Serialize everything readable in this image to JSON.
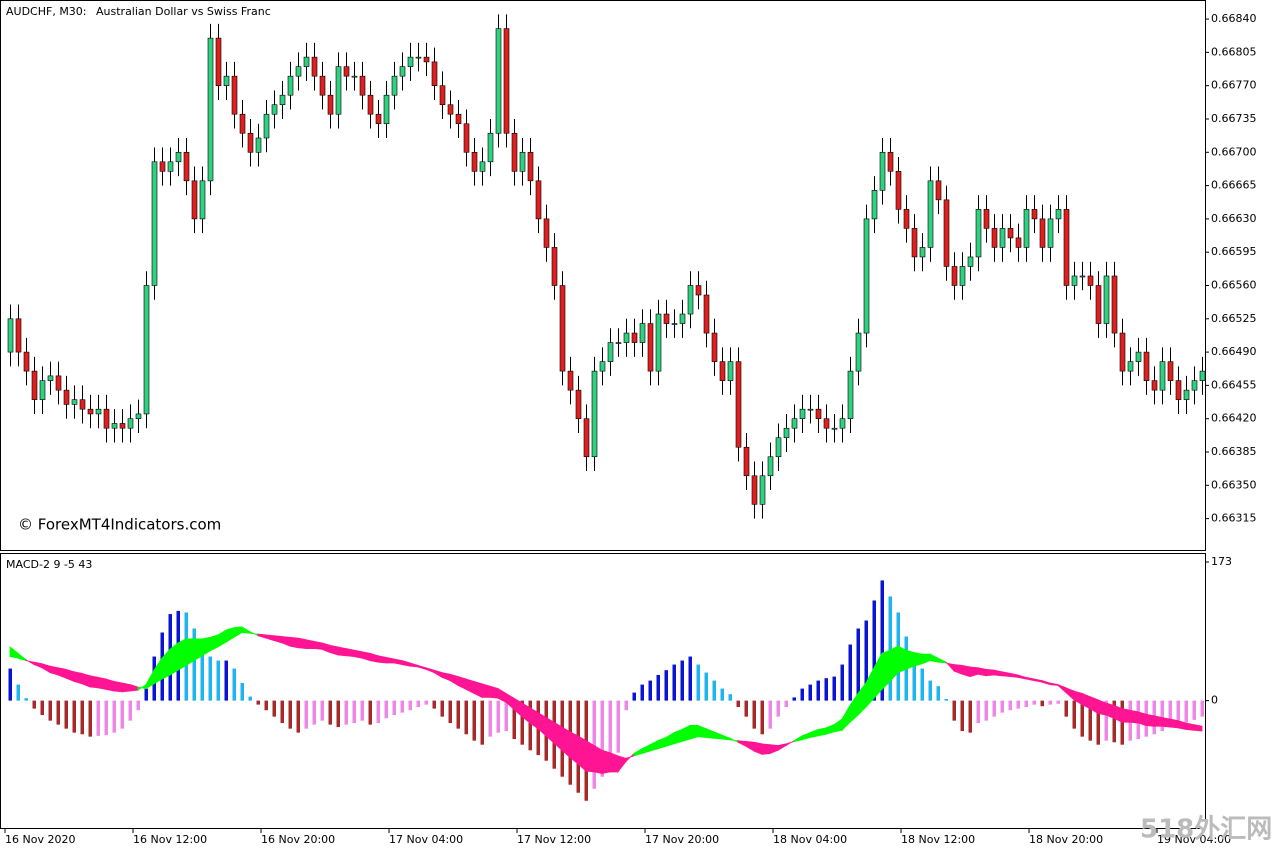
{
  "watermark": "518外汇网",
  "chart_data": [
    {
      "type": "candlestick",
      "title": "AUDCHF, M30:",
      "subtitle": "Australian Dollar vs Swiss Franc",
      "annotation": "© ForexMT4Indicators.com",
      "up_color": "#2fd07f",
      "down_color": "#e0201f",
      "wick_color": "#000000",
      "categories": [
        "16 Nov 2020",
        null,
        null,
        null,
        null,
        null,
        null,
        null,
        null,
        null,
        null,
        null,
        null,
        null,
        null,
        null,
        "16 Nov 12:00",
        null,
        null,
        null,
        null,
        null,
        null,
        null,
        null,
        null,
        null,
        null,
        null,
        null,
        null,
        null,
        "16 Nov 20:00",
        null,
        null,
        null,
        null,
        null,
        null,
        null,
        null,
        null,
        null,
        null,
        null,
        null,
        null,
        null,
        "17 Nov 04:00",
        null,
        null,
        null,
        null,
        null,
        null,
        null,
        null,
        null,
        null,
        null,
        null,
        null,
        null,
        null,
        "17 Nov 12:00",
        null,
        null,
        null,
        null,
        null,
        null,
        null,
        null,
        null,
        null,
        null,
        null,
        null,
        null,
        null,
        "17 Nov 20:00",
        null,
        null,
        null,
        null,
        null,
        null,
        null,
        null,
        null,
        null,
        null,
        null,
        null,
        null,
        null,
        "18 Nov 04:00",
        null,
        null,
        null,
        null,
        null,
        null,
        null,
        null,
        null,
        null,
        null,
        null,
        null,
        null,
        null,
        "18 Nov 12:00",
        null,
        null,
        null,
        null,
        null,
        null,
        null,
        null,
        null,
        null,
        null,
        null,
        null,
        null,
        null,
        "18 Nov 20:00",
        null,
        null,
        null,
        null,
        null,
        null,
        null,
        null,
        null,
        null,
        null,
        null,
        null,
        null,
        null,
        "19 Nov 04:00",
        null,
        null,
        null,
        null,
        null
      ],
      "open": [
        0.6649,
        0.66525,
        0.6649,
        0.6647,
        0.6644,
        0.6646,
        0.66465,
        0.6645,
        0.66435,
        0.6644,
        0.6643,
        0.66425,
        0.6643,
        0.6641,
        0.66415,
        0.6641,
        0.6642,
        0.66425,
        0.6656,
        0.6669,
        0.6668,
        0.6669,
        0.667,
        0.6667,
        0.6663,
        0.6667,
        0.6682,
        0.6677,
        0.6678,
        0.6674,
        0.6672,
        0.667,
        0.66715,
        0.6674,
        0.6675,
        0.6676,
        0.6678,
        0.6679,
        0.668,
        0.6678,
        0.6676,
        0.6674,
        0.6679,
        0.6678,
        0.6678,
        0.6676,
        0.6674,
        0.6673,
        0.6676,
        0.6678,
        0.6679,
        0.668,
        0.668,
        0.66795,
        0.6677,
        0.6675,
        0.6674,
        0.6673,
        0.667,
        0.6668,
        0.6669,
        0.6672,
        0.6683,
        0.6672,
        0.6668,
        0.667,
        0.6667,
        0.6663,
        0.666,
        0.6656,
        0.6647,
        0.6645,
        0.6642,
        0.6638,
        0.6647,
        0.6648,
        0.665,
        0.665,
        0.6651,
        0.665,
        0.6652,
        0.6647,
        0.6653,
        0.6652,
        0.6652,
        0.6653,
        0.6656,
        0.6655,
        0.6651,
        0.6648,
        0.6646,
        0.6648,
        0.6639,
        0.6636,
        0.6633,
        0.6636,
        0.6638,
        0.664,
        0.6641,
        0.6642,
        0.6643,
        0.6643,
        0.6642,
        0.6641,
        0.6641,
        0.6642,
        0.6647,
        0.6651,
        0.6663,
        0.6666,
        0.667,
        0.6668,
        0.6664,
        0.6662,
        0.6659,
        0.666,
        0.6667,
        0.6665,
        0.6658,
        0.6656,
        0.6658,
        0.6659,
        0.6664,
        0.6662,
        0.666,
        0.6662,
        0.6661,
        0.666,
        0.6664,
        0.6663,
        0.666,
        0.6663,
        0.6664,
        0.6656,
        0.6657,
        0.6657,
        0.6656,
        0.6652,
        0.6657,
        0.6651,
        0.6647,
        0.6648,
        0.6649,
        0.6646,
        0.6645,
        0.6648,
        0.6646,
        0.6644,
        0.6645,
        0.6646
      ],
      "high": [
        0.6654,
        0.6654,
        0.66505,
        0.66485,
        0.66475,
        0.6648,
        0.6648,
        0.66465,
        0.66455,
        0.66455,
        0.66445,
        0.66445,
        0.66445,
        0.6643,
        0.6643,
        0.66435,
        0.6644,
        0.66575,
        0.66705,
        0.66705,
        0.66705,
        0.66715,
        0.66715,
        0.66685,
        0.66685,
        0.66835,
        0.66835,
        0.66795,
        0.66795,
        0.66755,
        0.66735,
        0.6673,
        0.66755,
        0.66765,
        0.66775,
        0.66795,
        0.66805,
        0.66815,
        0.66815,
        0.66795,
        0.66775,
        0.66805,
        0.66805,
        0.66795,
        0.66795,
        0.66775,
        0.66755,
        0.66775,
        0.66795,
        0.66805,
        0.66815,
        0.66815,
        0.66815,
        0.6681,
        0.66785,
        0.66765,
        0.66755,
        0.66745,
        0.66715,
        0.66705,
        0.66735,
        0.66845,
        0.66845,
        0.66735,
        0.66715,
        0.66715,
        0.66685,
        0.66645,
        0.66615,
        0.66575,
        0.66485,
        0.66465,
        0.66435,
        0.66485,
        0.66495,
        0.66515,
        0.66515,
        0.66525,
        0.66525,
        0.66535,
        0.66535,
        0.66545,
        0.66545,
        0.66535,
        0.66545,
        0.66575,
        0.66575,
        0.66565,
        0.66525,
        0.66495,
        0.66495,
        0.66495,
        0.66405,
        0.66375,
        0.66375,
        0.66395,
        0.66415,
        0.66425,
        0.66435,
        0.66445,
        0.66445,
        0.66445,
        0.66435,
        0.66425,
        0.66435,
        0.66485,
        0.66525,
        0.66645,
        0.66675,
        0.66715,
        0.66715,
        0.66695,
        0.66655,
        0.66635,
        0.66615,
        0.66685,
        0.66685,
        0.66665,
        0.66595,
        0.66595,
        0.66605,
        0.66655,
        0.66655,
        0.66635,
        0.66635,
        0.66635,
        0.66625,
        0.66655,
        0.66655,
        0.66645,
        0.66645,
        0.66655,
        0.66655,
        0.66585,
        0.66585,
        0.66585,
        0.66575,
        0.66585,
        0.66585,
        0.66525,
        0.66495,
        0.66505,
        0.66505,
        0.66475,
        0.66495,
        0.66495,
        0.66475,
        0.66465,
        0.66475,
        0.66485
      ],
      "low": [
        0.66475,
        0.66475,
        0.66455,
        0.66425,
        0.66425,
        0.66445,
        0.66435,
        0.6642,
        0.6642,
        0.66415,
        0.6641,
        0.6641,
        0.66395,
        0.66395,
        0.66395,
        0.66395,
        0.66405,
        0.6641,
        0.66545,
        0.66665,
        0.66665,
        0.66675,
        0.66655,
        0.66615,
        0.66615,
        0.66655,
        0.66755,
        0.66755,
        0.66725,
        0.66705,
        0.66685,
        0.66685,
        0.667,
        0.66725,
        0.66735,
        0.66745,
        0.66765,
        0.66775,
        0.66765,
        0.66745,
        0.66725,
        0.66725,
        0.66765,
        0.66765,
        0.66745,
        0.66725,
        0.66715,
        0.66715,
        0.66745,
        0.66765,
        0.66775,
        0.66785,
        0.6678,
        0.66755,
        0.66735,
        0.66725,
        0.66715,
        0.66685,
        0.66665,
        0.66665,
        0.66675,
        0.66705,
        0.66705,
        0.66665,
        0.66665,
        0.66655,
        0.66615,
        0.66585,
        0.66545,
        0.66455,
        0.66435,
        0.66405,
        0.66365,
        0.66365,
        0.66455,
        0.66465,
        0.66485,
        0.66485,
        0.66485,
        0.66485,
        0.66455,
        0.66455,
        0.66505,
        0.66505,
        0.66505,
        0.66515,
        0.66535,
        0.66495,
        0.66465,
        0.66445,
        0.66445,
        0.66375,
        0.66345,
        0.66315,
        0.66315,
        0.66345,
        0.66365,
        0.66385,
        0.66395,
        0.66405,
        0.66415,
        0.66405,
        0.66395,
        0.66395,
        0.66395,
        0.66405,
        0.66455,
        0.66495,
        0.66615,
        0.66645,
        0.66665,
        0.66625,
        0.66605,
        0.66575,
        0.66575,
        0.66585,
        0.66635,
        0.66565,
        0.66545,
        0.66545,
        0.66565,
        0.66575,
        0.66605,
        0.66585,
        0.66585,
        0.66595,
        0.66585,
        0.66585,
        0.66615,
        0.66585,
        0.66585,
        0.66615,
        0.66545,
        0.66545,
        0.66555,
        0.66545,
        0.66505,
        0.66505,
        0.66495,
        0.66455,
        0.66455,
        0.66465,
        0.66445,
        0.66435,
        0.66435,
        0.66445,
        0.66425,
        0.66425,
        0.66435,
        0.66445
      ],
      "close": [
        0.66525,
        0.6649,
        0.6647,
        0.6644,
        0.6646,
        0.66465,
        0.6645,
        0.66435,
        0.6644,
        0.6643,
        0.66425,
        0.6643,
        0.6641,
        0.66415,
        0.6641,
        0.6642,
        0.66425,
        0.6656,
        0.6669,
        0.6668,
        0.6669,
        0.667,
        0.6667,
        0.6663,
        0.6667,
        0.6682,
        0.6677,
        0.6678,
        0.6674,
        0.6672,
        0.667,
        0.66715,
        0.6674,
        0.6675,
        0.6676,
        0.6678,
        0.6679,
        0.668,
        0.6678,
        0.6676,
        0.6674,
        0.6679,
        0.6678,
        0.6678,
        0.6676,
        0.6674,
        0.6673,
        0.6676,
        0.6678,
        0.6679,
        0.668,
        0.668,
        0.66795,
        0.6677,
        0.6675,
        0.6674,
        0.6673,
        0.667,
        0.6668,
        0.6669,
        0.6672,
        0.6683,
        0.6672,
        0.6668,
        0.667,
        0.6667,
        0.6663,
        0.666,
        0.6656,
        0.6647,
        0.6645,
        0.6642,
        0.6638,
        0.6647,
        0.6648,
        0.665,
        0.665,
        0.6651,
        0.665,
        0.6652,
        0.6647,
        0.6653,
        0.6652,
        0.6652,
        0.6653,
        0.6656,
        0.6655,
        0.6651,
        0.6648,
        0.6646,
        0.6648,
        0.6639,
        0.6636,
        0.6633,
        0.6636,
        0.6638,
        0.664,
        0.6641,
        0.6642,
        0.6643,
        0.6643,
        0.6642,
        0.6641,
        0.6641,
        0.6642,
        0.6647,
        0.6651,
        0.6663,
        0.6666,
        0.667,
        0.6668,
        0.6664,
        0.6662,
        0.6659,
        0.666,
        0.6667,
        0.6665,
        0.6658,
        0.6656,
        0.6658,
        0.6659,
        0.6664,
        0.6662,
        0.666,
        0.6662,
        0.6661,
        0.666,
        0.6664,
        0.6663,
        0.666,
        0.6663,
        0.6664,
        0.6656,
        0.6657,
        0.6657,
        0.6656,
        0.6652,
        0.6657,
        0.6651,
        0.6647,
        0.6648,
        0.6649,
        0.6646,
        0.6645,
        0.6648,
        0.6646,
        0.6644,
        0.6645,
        0.6646,
        0.6647
      ],
      "ylim": [
        0.66282,
        0.66859
      ],
      "yticks": [
        {
          "value": 0.6684,
          "label": "0.66840"
        },
        {
          "value": 0.66805,
          "label": "0.66805"
        },
        {
          "value": 0.6677,
          "label": "0.66770"
        },
        {
          "value": 0.66735,
          "label": "0.66735"
        },
        {
          "value": 0.667,
          "label": "0.66700"
        },
        {
          "value": 0.66665,
          "label": "0.66665"
        },
        {
          "value": 0.6663,
          "label": "0.66630"
        },
        {
          "value": 0.66595,
          "label": "0.66595"
        },
        {
          "value": 0.6656,
          "label": "0.66560"
        },
        {
          "value": 0.66525,
          "label": "0.66525"
        },
        {
          "value": 0.6649,
          "label": "0.66490"
        },
        {
          "value": 0.66455,
          "label": "0.66455"
        },
        {
          "value": 0.6642,
          "label": "0.66420"
        },
        {
          "value": 0.66385,
          "label": "0.66385"
        },
        {
          "value": 0.6635,
          "label": "0.66350"
        },
        {
          "value": 0.66315,
          "label": "0.66315"
        }
      ]
    },
    {
      "type": "macd",
      "title": "MACD-2 9 -5 43",
      "pos_rising_color": "#0a14d2",
      "pos_falling_color": "#1eb4f0",
      "neg_falling_color": "#a52a2a",
      "neg_rising_color": "#ee88e8",
      "bull_color": "#00ff00",
      "bear_color": "#ff1493",
      "histogram": [
        40,
        20,
        3,
        -10,
        -18,
        -25,
        -30,
        -35,
        -40,
        -42,
        -45,
        -44,
        -43,
        -40,
        -35,
        -25,
        -12,
        15,
        55,
        85,
        108,
        112,
        110,
        90,
        70,
        55,
        50,
        50,
        40,
        22,
        5,
        -5,
        -12,
        -20,
        -28,
        -35,
        -40,
        -35,
        -30,
        -25,
        -30,
        -33,
        -30,
        -28,
        -25,
        -30,
        -28,
        -22,
        -18,
        -15,
        -12,
        -8,
        -5,
        -10,
        -20,
        -28,
        -35,
        -42,
        -50,
        -55,
        -45,
        -40,
        -38,
        -48,
        -55,
        -62,
        -68,
        -75,
        -85,
        -95,
        -105,
        -115,
        -125,
        -110,
        -95,
        -80,
        -65,
        -12,
        10,
        20,
        25,
        32,
        38,
        45,
        50,
        55,
        45,
        35,
        25,
        15,
        8,
        -8,
        -20,
        -35,
        -42,
        -35,
        -20,
        -8,
        4,
        15,
        20,
        25,
        28,
        30,
        45,
        70,
        90,
        100,
        125,
        150,
        130,
        110,
        80,
        55,
        40,
        25,
        18,
        2,
        -25,
        -38,
        -40,
        -28,
        -25,
        -20,
        -15,
        -12,
        -10,
        -8,
        -5,
        -7,
        -5,
        -4,
        -20,
        -35,
        -45,
        -50,
        -55,
        -50,
        -52,
        -55,
        -50,
        -48,
        -45,
        -42,
        -38,
        -33,
        -30,
        -27,
        -24,
        -20
      ],
      "macd": [
        67,
        59,
        51,
        45,
        41,
        35,
        32,
        28,
        24,
        21,
        17,
        16,
        14,
        12,
        11,
        12,
        13,
        20,
        38,
        53,
        64,
        72,
        77,
        77,
        77,
        79,
        82,
        88,
        91,
        92,
        86,
        81,
        78,
        75,
        72,
        68,
        66,
        65,
        65,
        64,
        60,
        57,
        56,
        55,
        53,
        50,
        48,
        47,
        47,
        45,
        43,
        42,
        39,
        35,
        29,
        25,
        19,
        14,
        9,
        4,
        4,
        3,
        -2,
        -11,
        -20,
        -28,
        -35,
        -44,
        -53,
        -62,
        -71,
        -79,
        -88,
        -89,
        -91,
        -89,
        -89,
        -76,
        -66,
        -60,
        -55,
        -50,
        -46,
        -40,
        -36,
        -31,
        -31,
        -35,
        -39,
        -43,
        -47,
        -52,
        -57,
        -63,
        -67,
        -66,
        -62,
        -56,
        -50,
        -44,
        -40,
        -36,
        -34,
        -30,
        -23,
        -6,
        9,
        22,
        41,
        59,
        63,
        68,
        63,
        60,
        58,
        58,
        53,
        48,
        37,
        33,
        30,
        33,
        31,
        32,
        31,
        30,
        29,
        27,
        25,
        23,
        20,
        19,
        10,
        1,
        -5,
        -10,
        -16,
        -18,
        -22,
        -27,
        -27,
        -28,
        -31,
        -32,
        -32,
        -33,
        -34,
        -36,
        -37,
        -38
      ],
      "signal": [
        55,
        53,
        50,
        48,
        46,
        43,
        41,
        39,
        36,
        34,
        31,
        29,
        27,
        24,
        22,
        20,
        17,
        15,
        21,
        27,
        32,
        38,
        44,
        50,
        56,
        62,
        67,
        73,
        79,
        85,
        84,
        83,
        82,
        81,
        80,
        79,
        78,
        76,
        74,
        72,
        69,
        67,
        65,
        63,
        61,
        59,
        56,
        54,
        52,
        50,
        47,
        44,
        41,
        38,
        35,
        33,
        30,
        27,
        24,
        21,
        18,
        15,
        9,
        3,
        -3,
        -9,
        -15,
        -21,
        -27,
        -33,
        -39,
        -44,
        -50,
        -56,
        -62,
        -65,
        -69,
        -72,
        -69,
        -66,
        -63,
        -60,
        -57,
        -54,
        -51,
        -48,
        -45,
        -46,
        -47,
        -48,
        -49,
        -50,
        -51,
        -52,
        -54,
        -55,
        -56,
        -54,
        -51,
        -49,
        -46,
        -44,
        -42,
        -39,
        -37,
        -27,
        -18,
        -8,
        3,
        14,
        24,
        35,
        39,
        43,
        46,
        50,
        48,
        47,
        45,
        44,
        42,
        41,
        39,
        38,
        36,
        34,
        32,
        29,
        27,
        25,
        22,
        20,
        16,
        12,
        9,
        5,
        1,
        -3,
        -6,
        -10,
        -12,
        -14,
        -17,
        -19,
        -21,
        -23,
        -25,
        -28,
        -30,
        -32
      ],
      "ylim": [
        -159,
        183
      ],
      "yticks": [
        173,
        0
      ]
    }
  ]
}
